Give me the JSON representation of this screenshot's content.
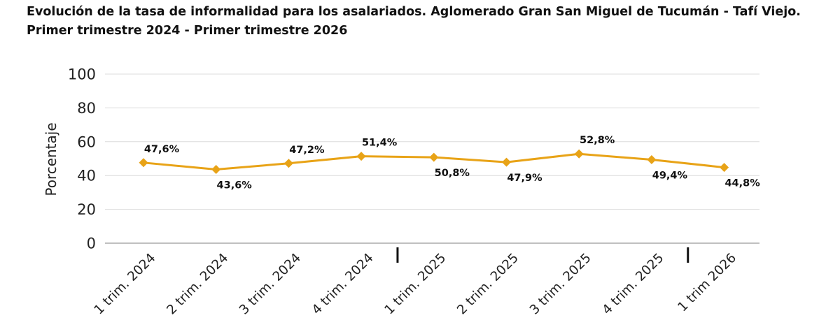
{
  "title": {
    "line1": "Evolución de la tasa de informalidad para los asalariados. Aglomerado Gran San Miguel de Tucumán - Tafí Viejo.",
    "line2": "Primer trimestre 2024 - Primer trimestre 2026"
  },
  "chart_data": {
    "type": "line",
    "title": "Evolución de la tasa de informalidad para los asalariados. Aglomerado Gran San Miguel de Tucumán - Tafí Viejo. Primer trimestre 2024 - Primer trimestre 2026",
    "xlabel": "",
    "ylabel": "Porcentaje",
    "ylim": [
      0,
      100
    ],
    "yticks": [
      0,
      20,
      40,
      60,
      80,
      100
    ],
    "grid": true,
    "legend": "none",
    "color": "#E8A317",
    "categories": [
      "1 trim. 2024",
      "2 trim. 2024",
      "3 trim. 2024",
      "4 trim. 2024",
      "1 trim. 2025",
      "2 trim. 2025",
      "3 trim. 2025",
      "4 trim. 2025",
      "1 trim 2026"
    ],
    "series": [
      {
        "values": [
          47.6,
          43.6,
          47.2,
          51.4,
          50.8,
          47.9,
          52.8,
          49.4,
          44.8
        ],
        "data_labels": [
          "47,6%",
          "43,6%",
          "47,2%",
          "51,4%",
          "50,8%",
          "47,9%",
          "52,8%",
          "49,4%",
          "44,8%"
        ]
      }
    ],
    "year_separators": "between 4 trim. 2024 and 1 trim. 2025; between 4 trim. 2025 and 1 trim 2026"
  }
}
